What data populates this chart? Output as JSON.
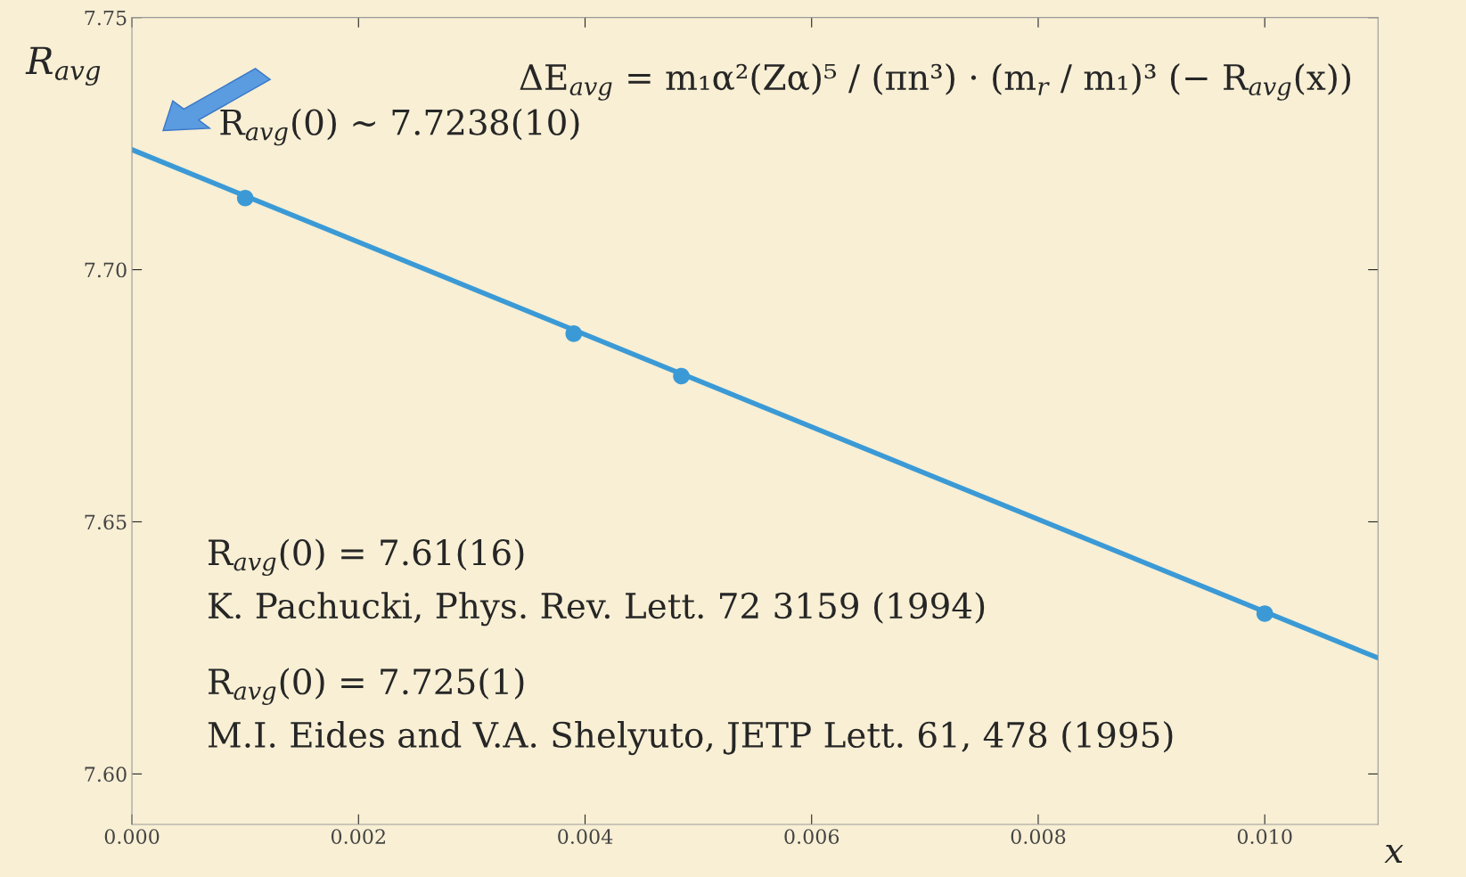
{
  "chart_data": {
    "type": "scatter",
    "xlabel": "x",
    "ylabel": "R$_{avg}$",
    "series": [
      {
        "color": "#3b9ad6",
        "marker": "circle",
        "x": [
          0.001,
          0.0039,
          0.00485,
          0.01
        ],
        "values": [
          7.7142,
          7.6873,
          7.6789,
          7.6318
        ]
      },
      {
        "type": "line",
        "color": "#3b9ad6",
        "x": [
          0,
          0.011
        ],
        "values": [
          7.7238,
          7.623
        ]
      }
    ],
    "xlim": [
      0,
      0.011
    ],
    "ylim": [
      7.59,
      7.75
    ],
    "xticks": [
      {
        "value": 0,
        "label": "0.000"
      },
      {
        "value": 0.002,
        "label": "0.002"
      },
      {
        "value": 0.004,
        "label": "0.004"
      },
      {
        "value": 0.006,
        "label": "0.006"
      },
      {
        "value": 0.008,
        "label": "0.008"
      },
      {
        "value": 0.01,
        "label": "0.010"
      }
    ],
    "yticks": [
      {
        "value": 7.6,
        "label": "7.60"
      },
      {
        "value": 7.65,
        "label": "7.65"
      },
      {
        "value": 7.7,
        "label": "7.70"
      },
      {
        "value": 7.75,
        "label": "7.75"
      }
    ],
    "grid": false,
    "line_style": "solid",
    "annotations": [
      {
        "text": "R$_{avg}$(0) ~ 7.7238(10)",
        "x": 0,
        "y": 7.7238
      },
      "ΔE$_{avg}$ = m₁α²(Zα)⁵ / (πn³) · (m$_{r}$ / m₁)³ (− R$_{avg}$(x))",
      "R$_{avg}$(0) = 7.61(16)\nK. Pachucki, Phys. Rev. Lett. 72 3159 (1994)",
      "R$_{avg}$(0) = 7.725(1)\nM.I. Eides and V.A. Shelyuto, JETP Lett. 61, 478 (1995)"
    ]
  }
}
